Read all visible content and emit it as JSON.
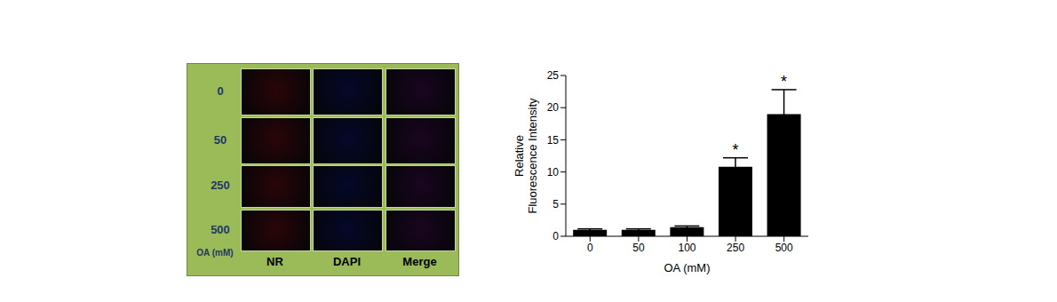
{
  "chart_data": {
    "type": "bar",
    "categories": [
      "0",
      "50",
      "100",
      "250",
      "500"
    ],
    "values": [
      1,
      1,
      1.4,
      10.8,
      19
    ],
    "errors": [
      0.15,
      0.15,
      0.2,
      1.4,
      3.8
    ],
    "color": "#000000",
    "ylim": [
      0,
      25
    ],
    "yticks": [
      0,
      5,
      10,
      15,
      20,
      25
    ],
    "x_label": "OA (mM)",
    "y_label": [
      "Relative",
      "Fluorescence Intensity"
    ],
    "annotations": [
      {
        "category": "250",
        "text": "*"
      },
      {
        "category": "500",
        "text": "*"
      }
    ]
  },
  "image_panel": {
    "rows": [
      "0",
      "50",
      "250",
      "500"
    ],
    "columns": [
      "NR",
      "DAPI",
      "Merge"
    ],
    "row_axis_label": "OA (mM)"
  }
}
